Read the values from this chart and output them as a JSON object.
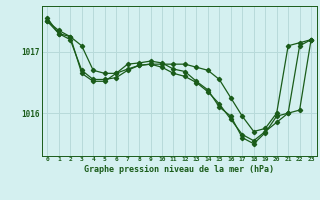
{
  "bg_color": "#d4f0f0",
  "grid_color": "#b8dada",
  "line_color": "#1a5c1a",
  "title": "Graphe pression niveau de la mer (hPa)",
  "yticks": [
    1016,
    1017
  ],
  "ylim": [
    1015.3,
    1017.75
  ],
  "xlim": [
    -0.5,
    23.5
  ],
  "xticks": [
    0,
    1,
    2,
    3,
    4,
    5,
    6,
    7,
    8,
    9,
    10,
    11,
    12,
    13,
    14,
    15,
    16,
    17,
    18,
    19,
    20,
    21,
    22,
    23
  ],
  "series1": [
    1017.5,
    1017.35,
    1017.25,
    1017.1,
    1016.7,
    1016.65,
    1016.65,
    1016.72,
    1016.78,
    1016.8,
    1016.8,
    1016.8,
    1016.8,
    1016.75,
    1016.7,
    1016.55,
    1016.25,
    1015.95,
    1015.7,
    1015.75,
    1016.0,
    1017.1,
    1017.15,
    1017.2
  ],
  "series2": [
    1017.5,
    1017.3,
    1017.2,
    1016.7,
    1016.55,
    1016.55,
    1016.58,
    1016.7,
    1016.78,
    1016.8,
    1016.75,
    1016.65,
    1016.6,
    1016.5,
    1016.35,
    1016.15,
    1015.9,
    1015.65,
    1015.55,
    1015.7,
    1015.85,
    1016.0,
    1017.1,
    1017.2
  ],
  "series3": [
    1017.55,
    1017.3,
    1017.25,
    1016.65,
    1016.52,
    1016.52,
    1016.65,
    1016.8,
    1016.82,
    1016.85,
    1016.82,
    1016.72,
    1016.68,
    1016.52,
    1016.38,
    1016.1,
    1015.95,
    1015.6,
    1015.5,
    1015.68,
    1015.95,
    1016.0,
    1016.05,
    1017.2
  ]
}
